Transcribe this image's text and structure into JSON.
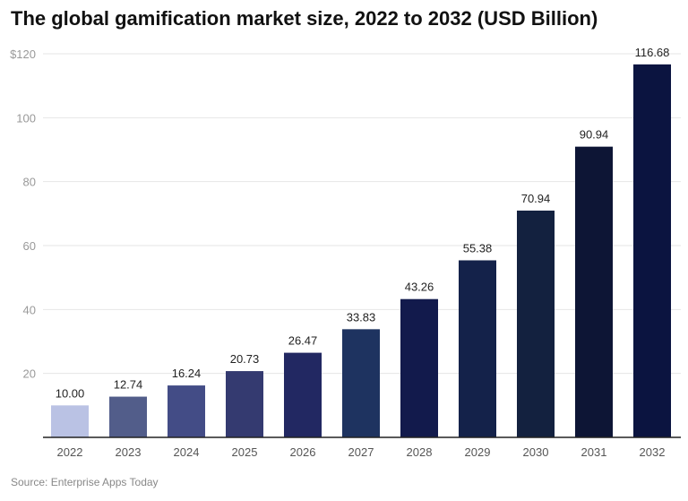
{
  "chart_data": {
    "type": "bar",
    "title": "The global gamification market size, 2022 to 2032 (USD Billion)",
    "categories": [
      "2022",
      "2023",
      "2024",
      "2025",
      "2026",
      "2027",
      "2028",
      "2029",
      "2030",
      "2031",
      "2032"
    ],
    "values": [
      10.0,
      12.74,
      16.24,
      20.73,
      26.47,
      33.83,
      43.26,
      55.38,
      70.94,
      90.94,
      116.68
    ],
    "value_labels": [
      "10.00",
      "12.74",
      "16.24",
      "20.73",
      "26.47",
      "33.83",
      "43.26",
      "55.38",
      "70.94",
      "90.94",
      "116.68"
    ],
    "colors": [
      "#bac2e4",
      "#525d8a",
      "#434c86",
      "#343a70",
      "#222862",
      "#1e3360",
      "#121a4c",
      "#14224a",
      "#13213f",
      "#0d1535",
      "#0b1440"
    ],
    "yticks": [
      20,
      40,
      60,
      80,
      100,
      120
    ],
    "ytick_labels": [
      "20",
      "40",
      "60",
      "80",
      "100",
      "$120"
    ],
    "ylim": [
      0,
      120
    ],
    "grid": true,
    "xlabel": "",
    "ylabel": ""
  },
  "source": "Source: Enterprise Apps Today"
}
